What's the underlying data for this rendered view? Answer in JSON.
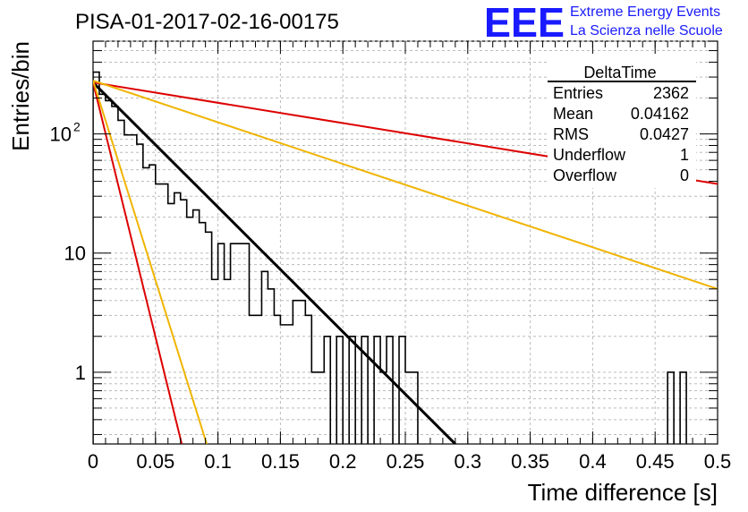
{
  "chart_data": {
    "type": "histogram",
    "title": "PISA-01-2017-02-16-00175",
    "xlabel": "Time difference [s]",
    "ylabel": "Entries/bin",
    "xlim": [
      0,
      0.5
    ],
    "ylim": [
      0.25,
      600
    ],
    "yscale": "log",
    "grid": true,
    "x_ticks": [
      "0",
      "0.05",
      "0.1",
      "0.15",
      "0.2",
      "0.25",
      "0.3",
      "0.35",
      "0.4",
      "0.45",
      "0.5"
    ],
    "y_ticks": [
      {
        "value": 1,
        "label": "1"
      },
      {
        "value": 10,
        "label": "10"
      },
      {
        "value": 100,
        "label": "10",
        "exponent": "2"
      }
    ],
    "bin_width": 0.005,
    "histogram": [
      330,
      215,
      190,
      170,
      130,
      98,
      98,
      82,
      52,
      55,
      38,
      38,
      26,
      32,
      28,
      20,
      23,
      18,
      15,
      6,
      12,
      6,
      12,
      12,
      12,
      3,
      3,
      7,
      5,
      3,
      2.5,
      2.5,
      4,
      4,
      3,
      1,
      1,
      2,
      0.2,
      2,
      0.2,
      2,
      0.2,
      2,
      0.2,
      2,
      1,
      2,
      0.2,
      2,
      1,
      1,
      0.2,
      0.2,
      0.2,
      0.2,
      0.2,
      0.2,
      0.2,
      0.2,
      0.2,
      0.2,
      0.2,
      0.2,
      0.2,
      0.2,
      0.2,
      0.2,
      0.2,
      0.2,
      0.2,
      0.2,
      0.2,
      0.2,
      0.2,
      0.2,
      0.2,
      0.2,
      0.2,
      0.2,
      0.2,
      0.2,
      0.2,
      0.2,
      0.2,
      0.2,
      0.2,
      0.2,
      0.2,
      0.2,
      0.2,
      0.2,
      1,
      0.2,
      1,
      0.2,
      0.2,
      0.2,
      0.2,
      0.2
    ],
    "curves": [
      {
        "color": "#000000",
        "points": [
          [
            0,
            270
          ],
          [
            0.29,
            0.25
          ]
        ]
      },
      {
        "color": "#dd0000",
        "points": [
          [
            0,
            270
          ],
          [
            0.5,
            38
          ]
        ]
      },
      {
        "color": "#f0b400",
        "points": [
          [
            0,
            280
          ],
          [
            0.5,
            5
          ]
        ]
      },
      {
        "color": "#dd0000",
        "points": [
          [
            0,
            270
          ],
          [
            0.071,
            0.25
          ]
        ]
      },
      {
        "color": "#f0b400",
        "points": [
          [
            0,
            280
          ],
          [
            0.091,
            0.25
          ]
        ]
      }
    ]
  },
  "stats": {
    "title": "DeltaTime",
    "rows": [
      {
        "label": "Entries",
        "value": "2362"
      },
      {
        "label": "Mean",
        "value": "0.04162"
      },
      {
        "label": "RMS",
        "value": "0.0427"
      },
      {
        "label": "Underflow",
        "value": "1"
      },
      {
        "label": "Overflow",
        "value": "0"
      }
    ]
  },
  "logo": {
    "text": "EEE",
    "line1": "Extreme Energy Events",
    "line2": "La Scienza nelle Scuole",
    "color": "#1a1aff"
  }
}
